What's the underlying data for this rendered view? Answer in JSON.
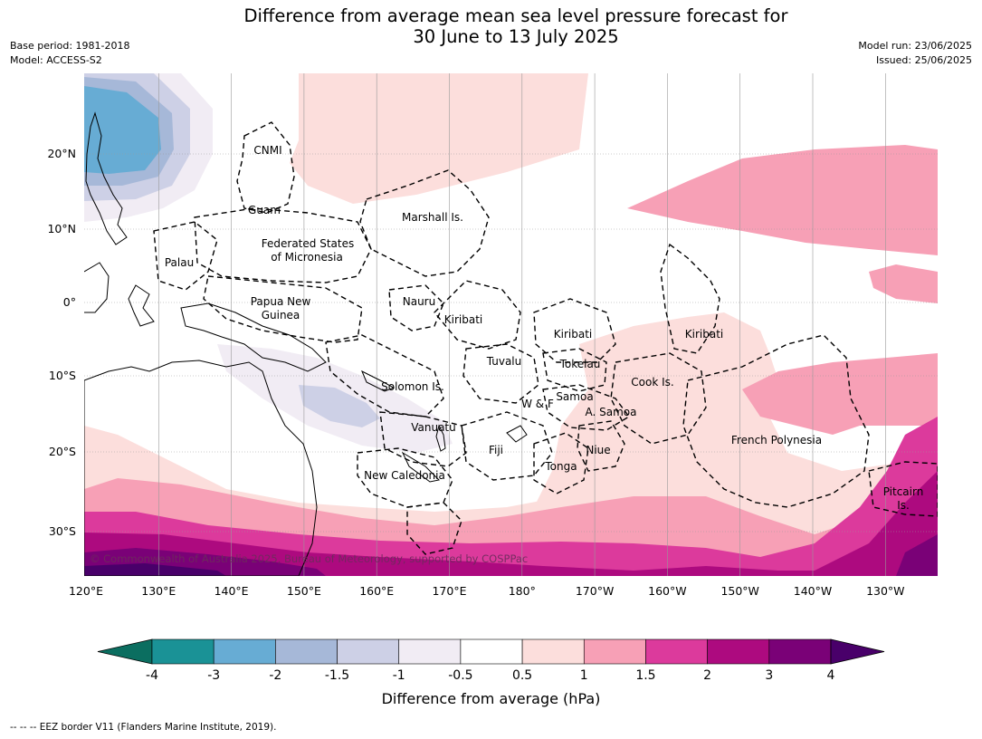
{
  "header": {
    "title_line1": "Difference from average mean sea level pressure forecast for",
    "title_line2": "30 June to 13 July 2025",
    "base_period": "Base period: 1981-2018",
    "model": "Model: ACCESS-S2",
    "model_run": "Model run: 23/06/2025",
    "issued": "Issued: 25/06/2025"
  },
  "map": {
    "lon_labels": [
      "120°E",
      "130°E",
      "140°E",
      "150°E",
      "160°E",
      "170°E",
      "180°",
      "170°W",
      "160°W",
      "150°W",
      "140°W",
      "130°W"
    ],
    "lat_labels": [
      "20°N",
      "10°N",
      "0°",
      "10°S",
      "20°S",
      "30°S"
    ],
    "regions": [
      "CNMI",
      "Guam",
      "Marshall Is.",
      "Federated States",
      "of Micronesia",
      "Palau",
      "Papua New",
      "Guinea",
      "Nauru",
      "Kiribati",
      "Kiribati",
      "Kiribati",
      "Tuvalu",
      "Tokelau",
      "Solomon Is.",
      "Samoa",
      "W & F",
      "A. Samoa",
      "Cook Is.",
      "Vanuatu",
      "Fiji",
      "Niue",
      "Tonga",
      "French Polynesia",
      "New Caledonia",
      "Pitcairn",
      "Is."
    ],
    "copyright": "© Commonwealth of Australia 2025, Bureau of Meteorology, supported by COSPPac"
  },
  "colorbar": {
    "ticks": [
      "-4",
      "-3",
      "-2",
      "-1.5",
      "-1",
      "-0.5",
      "0.5",
      "1",
      "1.5",
      "2",
      "3",
      "4"
    ],
    "colors": [
      "#1a9296",
      "#67acd4",
      "#a6b8d8",
      "#cdd0e6",
      "#f1ecf4",
      "#ffffff",
      "#fcdedc",
      "#f7a0b6",
      "#dc3a9c",
      "#ad0a7f",
      "#7a0177"
    ],
    "low_color": "#0b6e60",
    "high_color": "#49006a",
    "label": "Difference from average (hPa)"
  },
  "footer": {
    "legend_text": "--  --  -- EEZ border V11 (Flanders Marine Institute, 2019)."
  }
}
